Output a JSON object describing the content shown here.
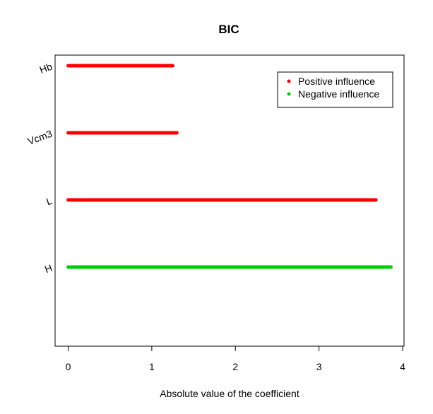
{
  "chart_data": {
    "type": "bar",
    "orientation": "horizontal",
    "title": "BIC",
    "xlabel": "Absolute value of the coefficient",
    "ylabel": "",
    "xlim": [
      0,
      4
    ],
    "xticks": [
      0,
      1,
      2,
      3,
      4
    ],
    "categories": [
      "Hb",
      "Vcm3",
      "L",
      "H"
    ],
    "values": [
      1.25,
      1.3,
      3.68,
      3.86
    ],
    "influence": [
      "Positive influence",
      "Positive influence",
      "Positive influence",
      "Negative influence"
    ],
    "legend": {
      "position": "top-right",
      "entries": [
        {
          "label": "Positive influence",
          "color": "#ff0000"
        },
        {
          "label": "Negative influence",
          "color": "#00cd00"
        }
      ]
    },
    "grid": false
  }
}
